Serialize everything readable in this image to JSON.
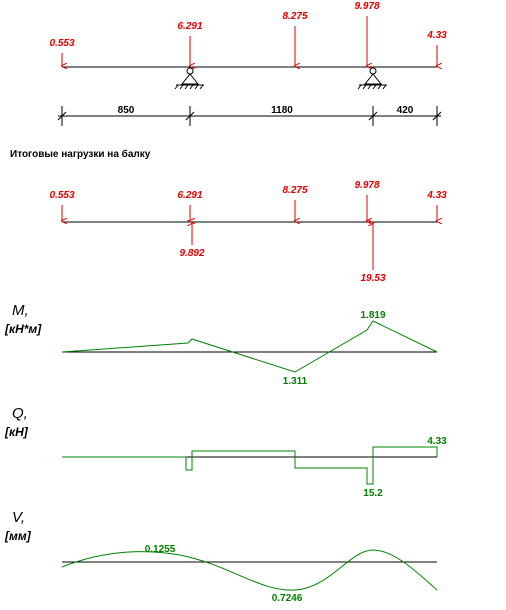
{
  "loads": [
    "0.553",
    "6.291",
    "8.275",
    "9.978",
    "4.33"
  ],
  "spans": [
    "850",
    "1180",
    "420"
  ],
  "section_title": "Итоговые нагрузки на балку",
  "result_loads": [
    "0.553",
    "6.291",
    "8.275",
    "9.978",
    "4.33"
  ],
  "reactions": [
    "9.892",
    "19.53"
  ],
  "moment": {
    "symbol": "M,",
    "unit": "[кН*м]",
    "labels": [
      "1.819",
      "1.311"
    ]
  },
  "shear": {
    "symbol": "Q,",
    "unit": "[кН]",
    "labels": [
      "4.33",
      "15.2"
    ]
  },
  "deflection": {
    "symbol": "V,",
    "unit": "[мм]",
    "labels": [
      "0.1255",
      "0.7246"
    ]
  }
}
